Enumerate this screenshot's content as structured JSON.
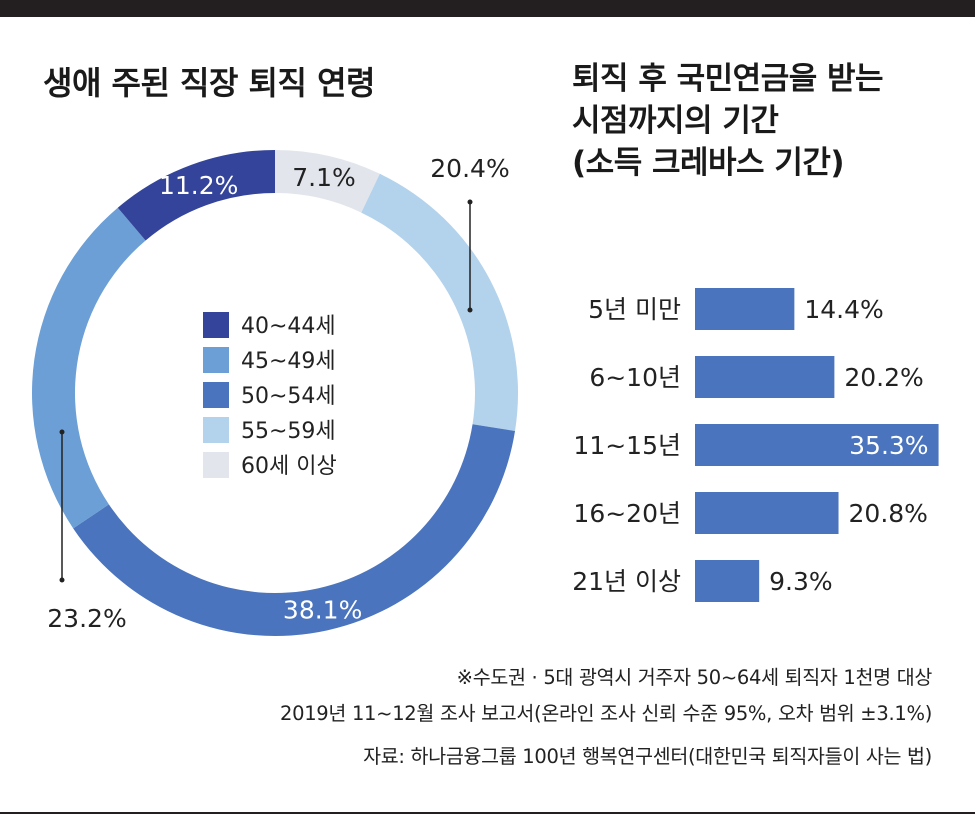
{
  "chart_data": [
    {
      "type": "pie",
      "title": "생애 주된 직장 퇴직 연령",
      "slices": [
        {
          "name": "40~44세",
          "value": 11.2,
          "label": "11.2%",
          "color": "#33449a"
        },
        {
          "name": "45~49세",
          "value": 23.2,
          "label": "23.2%",
          "color": "#6b9fd6"
        },
        {
          "name": "50~54세",
          "value": 38.1,
          "label": "38.1%",
          "color": "#4a74bd"
        },
        {
          "name": "55~59세",
          "value": 20.4,
          "label": "20.4%",
          "color": "#b3d2ec"
        },
        {
          "name": "60세 이상",
          "value": 7.1,
          "label": "7.1%",
          "color": "#e2e6ec"
        }
      ]
    },
    {
      "type": "bar",
      "orientation": "horizontal",
      "title": "퇴직 후 국민연금을 받는 시점까지의 기간 (소득 크레바스 기간)",
      "title_lines": [
        "퇴직 후 국민연금을 받는",
        "시점까지의 기간",
        "(소득 크레바스 기간)"
      ],
      "categories": [
        "5년 미만",
        "6~10년",
        "11~15년",
        "16~20년",
        "21년 이상"
      ],
      "values": [
        14.4,
        20.2,
        35.3,
        20.8,
        9.3
      ],
      "value_labels": [
        "14.4%",
        "20.2%",
        "35.3%",
        "20.8%",
        "9.3%"
      ],
      "color": "#4a74bd"
    }
  ],
  "notes": [
    "※수도권 · 5대 광역시 거주자 50~64세 퇴직자 1천명 대상",
    "2019년 11~12월 조사 보고서(온라인 조사 신뢰 수준 95%, 오차 범위 ±3.1%)",
    "자료: 하나금융그룹 100년 행복연구센터(대한민국 퇴직자들이 사는 법)"
  ]
}
